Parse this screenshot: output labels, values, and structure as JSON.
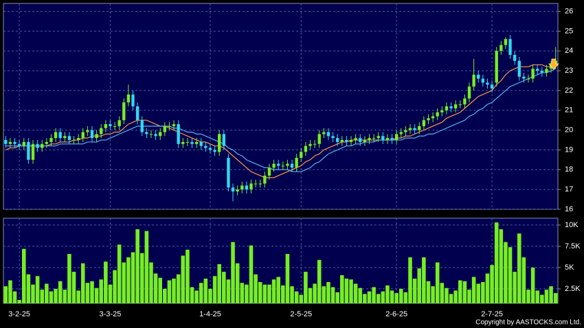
{
  "chart_data": [
    {
      "type": "candlestick",
      "categories": [
        null,
        null,
        null,
        "3-2-25",
        null,
        null,
        null,
        null,
        null,
        null,
        null,
        null,
        null,
        null,
        null,
        null,
        null,
        null,
        null,
        null,
        null,
        null,
        null,
        "3-3-25",
        null,
        null,
        null,
        null,
        null,
        null,
        null,
        null,
        null,
        null,
        null,
        null,
        null,
        null,
        null,
        null,
        null,
        null,
        null,
        null,
        null,
        "1-4-25",
        null,
        null,
        null,
        null,
        null,
        null,
        null,
        null,
        null,
        null,
        null,
        null,
        null,
        null,
        null,
        null,
        null,
        null,
        null,
        "2-5-25",
        null,
        null,
        null,
        null,
        null,
        null,
        null,
        null,
        null,
        null,
        null,
        null,
        null,
        null,
        null,
        null,
        null,
        null,
        null,
        null,
        "2-6-25",
        null,
        null,
        null,
        null,
        null,
        null,
        null,
        null,
        null,
        null,
        null,
        null,
        null,
        null,
        null,
        null,
        null,
        null,
        null,
        null,
        "2-7-25",
        null,
        null,
        null,
        null,
        null,
        null,
        null,
        null,
        null,
        null,
        null,
        null,
        null,
        null
      ],
      "open": [
        19.5,
        19.3,
        19.4,
        19.3,
        19.2,
        19.4,
        18.5,
        19.3,
        19.1,
        19.3,
        19.4,
        19.6,
        19.9,
        19.6,
        19.7,
        19.5,
        19.5,
        19.6,
        19.9,
        20.0,
        19.6,
        19.8,
        20.1,
        20.3,
        20.2,
        20.2,
        20.5,
        21.4,
        21.8,
        21.2,
        20.5,
        19.9,
        19.8,
        19.8,
        19.7,
        19.9,
        20.2,
        20.2,
        20.3,
        19.3,
        19.4,
        19.4,
        19.3,
        19.4,
        19.2,
        19.1,
        19.0,
        18.9,
        19.8,
        18.6,
        17.1,
        16.9,
        17.0,
        17.2,
        17.0,
        17.3,
        17.3,
        17.3,
        17.7,
        18.1,
        18.3,
        18.2,
        18.2,
        18.3,
        18.1,
        18.6,
        18.9,
        19.2,
        19.3,
        19.3,
        19.8,
        19.9,
        19.7,
        19.6,
        19.4,
        19.5,
        19.4,
        19.5,
        19.6,
        19.4,
        19.5,
        19.6,
        19.6,
        19.7,
        19.5,
        19.6,
        19.5,
        19.8,
        19.9,
        20.0,
        20.1,
        20.0,
        20.2,
        20.5,
        20.6,
        20.7,
        20.9,
        21.0,
        21.2,
        21.1,
        21.3,
        21.3,
        21.6,
        22.2,
        22.8,
        22.6,
        22.4,
        22.3,
        22.4,
        24.0,
        24.3,
        24.6,
        23.8,
        23.5,
        22.7,
        22.6,
        22.6,
        23.1,
        23.0,
        22.9,
        23.1,
        23.3
      ],
      "high": [
        19.7,
        19.6,
        19.6,
        19.5,
        19.6,
        19.6,
        19.5,
        19.5,
        19.5,
        19.6,
        19.8,
        20.1,
        20.1,
        19.9,
        19.9,
        19.7,
        19.8,
        20.1,
        20.2,
        20.2,
        20.0,
        20.3,
        20.5,
        20.5,
        20.4,
        20.7,
        21.6,
        22.3,
        22.0,
        21.4,
        20.7,
        20.1,
        20.0,
        20.0,
        20.1,
        20.4,
        20.4,
        20.5,
        20.5,
        19.6,
        19.6,
        19.6,
        19.6,
        19.6,
        19.4,
        19.3,
        19.2,
        20.0,
        20.0,
        18.8,
        17.3,
        17.2,
        17.4,
        17.4,
        17.5,
        17.5,
        17.5,
        17.9,
        18.3,
        18.5,
        18.5,
        18.4,
        18.5,
        18.5,
        18.8,
        19.1,
        19.4,
        19.5,
        19.5,
        20.0,
        20.1,
        20.1,
        19.9,
        19.8,
        19.7,
        19.7,
        19.7,
        19.8,
        19.8,
        19.7,
        19.8,
        19.8,
        19.9,
        19.9,
        19.8,
        19.8,
        20.0,
        20.1,
        20.2,
        20.3,
        20.3,
        20.4,
        20.7,
        20.8,
        20.9,
        21.1,
        21.2,
        21.4,
        21.4,
        21.5,
        21.5,
        21.8,
        22.4,
        23.6,
        23.0,
        22.8,
        22.6,
        22.5,
        24.2,
        24.5,
        24.7,
        24.8,
        24.0,
        23.7,
        22.9,
        22.8,
        23.3,
        23.3,
        23.2,
        23.3,
        23.5,
        24.2
      ],
      "low": [
        19.1,
        19.1,
        19.1,
        19.0,
        19.0,
        18.3,
        18.3,
        18.9,
        18.9,
        19.1,
        19.2,
        19.4,
        19.4,
        19.4,
        19.3,
        19.3,
        19.3,
        19.4,
        19.7,
        19.4,
        19.4,
        19.6,
        19.9,
        20.0,
        20.0,
        20.0,
        20.3,
        21.2,
        21.0,
        20.3,
        19.7,
        19.6,
        19.6,
        19.5,
        19.5,
        19.7,
        20.0,
        20.0,
        19.1,
        19.1,
        19.2,
        19.1,
        19.1,
        19.0,
        18.9,
        18.8,
        18.7,
        18.7,
        19.0,
        16.9,
        16.4,
        16.7,
        16.8,
        16.8,
        16.8,
        17.1,
        17.1,
        17.1,
        17.5,
        17.9,
        18.0,
        18.0,
        18.0,
        17.9,
        17.9,
        18.4,
        18.7,
        19.0,
        19.1,
        19.1,
        19.6,
        19.5,
        19.4,
        19.2,
        19.2,
        19.2,
        19.2,
        19.3,
        19.2,
        19.2,
        19.3,
        19.4,
        19.4,
        19.3,
        19.3,
        19.3,
        19.3,
        19.6,
        19.7,
        19.8,
        19.8,
        19.8,
        20.0,
        20.3,
        20.4,
        20.5,
        20.7,
        20.8,
        20.9,
        20.9,
        21.1,
        21.1,
        21.4,
        22.0,
        22.4,
        22.2,
        22.1,
        21.9,
        22.2,
        23.8,
        24.1,
        23.6,
        23.3,
        22.5,
        22.4,
        22.4,
        22.4,
        22.8,
        22.7,
        22.7,
        22.9,
        23.1
      ],
      "close": [
        19.3,
        19.4,
        19.3,
        19.2,
        19.4,
        18.5,
        19.3,
        19.1,
        19.3,
        19.4,
        19.6,
        19.9,
        19.6,
        19.7,
        19.5,
        19.5,
        19.6,
        19.9,
        20.0,
        19.6,
        19.8,
        20.1,
        20.3,
        20.2,
        20.2,
        20.5,
        21.4,
        21.8,
        21.2,
        20.5,
        19.9,
        19.8,
        19.8,
        19.7,
        19.9,
        20.2,
        20.2,
        20.3,
        19.3,
        19.4,
        19.4,
        19.3,
        19.4,
        19.2,
        19.1,
        19.0,
        18.9,
        19.8,
        19.2,
        17.1,
        16.9,
        17.0,
        17.2,
        17.0,
        17.3,
        17.3,
        17.3,
        17.7,
        18.1,
        18.3,
        18.2,
        18.2,
        18.3,
        18.1,
        18.6,
        18.9,
        19.2,
        19.3,
        19.3,
        19.8,
        19.9,
        19.7,
        19.6,
        19.4,
        19.5,
        19.4,
        19.5,
        19.6,
        19.4,
        19.5,
        19.6,
        19.6,
        19.7,
        19.5,
        19.6,
        19.5,
        19.8,
        19.9,
        20.0,
        20.1,
        20.0,
        20.2,
        20.5,
        20.6,
        20.7,
        20.9,
        21.0,
        21.2,
        21.1,
        21.3,
        21.3,
        21.6,
        22.2,
        22.8,
        22.6,
        22.4,
        22.3,
        22.1,
        24.0,
        24.3,
        24.6,
        23.8,
        23.5,
        22.7,
        22.6,
        22.6,
        23.1,
        23.0,
        22.9,
        23.1,
        23.3,
        23.5
      ],
      "up_color": "#77ee22",
      "down_color": "#33d6f0",
      "series": [
        {
          "color": "#ff9944",
          "values": [
            19.0,
            19.1,
            19.1,
            19.2,
            19.2,
            19.2,
            19.2,
            19.2,
            19.2,
            19.2,
            19.3,
            19.3,
            19.4,
            19.4,
            19.4,
            19.5,
            19.5,
            19.6,
            19.6,
            19.7,
            19.7,
            19.7,
            19.8,
            19.8,
            19.9,
            19.9,
            20.1,
            20.3,
            20.4,
            20.5,
            20.5,
            20.5,
            20.4,
            20.3,
            20.2,
            20.2,
            20.1,
            20.0,
            19.9,
            19.8,
            19.7,
            19.6,
            19.5,
            19.4,
            19.4,
            19.3,
            19.2,
            19.2,
            19.1,
            18.9,
            18.7,
            18.5,
            18.3,
            18.1,
            17.9,
            17.8,
            17.7,
            17.6,
            17.6,
            17.6,
            17.7,
            17.8,
            17.9,
            18.0,
            18.1,
            18.2,
            18.4,
            18.5,
            18.7,
            18.8,
            19.0,
            19.1,
            19.2,
            19.3,
            19.4,
            19.4,
            19.5,
            19.5,
            19.5,
            19.5,
            19.5,
            19.5,
            19.5,
            19.5,
            19.5,
            19.5,
            19.6,
            19.6,
            19.7,
            19.7,
            19.8,
            19.9,
            20.0,
            20.1,
            20.2,
            20.3,
            20.4,
            20.6,
            20.7,
            20.8,
            20.9,
            21.1,
            21.3,
            21.5,
            21.7,
            21.8,
            21.9,
            22.0,
            22.3,
            22.5,
            22.8,
            23.0,
            23.1,
            23.2,
            23.2,
            23.2,
            23.3,
            23.3,
            23.3,
            23.2,
            23.2,
            23.1
          ]
        },
        {
          "color": "#5ab4f0",
          "values": [
            19.2,
            19.2,
            19.2,
            19.2,
            19.2,
            19.2,
            19.2,
            19.2,
            19.2,
            19.2,
            19.2,
            19.2,
            19.3,
            19.3,
            19.3,
            19.3,
            19.3,
            19.3,
            19.4,
            19.4,
            19.4,
            19.5,
            19.5,
            19.6,
            19.7,
            19.8,
            19.9,
            20.0,
            20.1,
            20.2,
            20.2,
            20.2,
            20.2,
            20.2,
            20.2,
            20.2,
            20.2,
            20.1,
            20.1,
            20.0,
            19.9,
            19.9,
            19.8,
            19.8,
            19.7,
            19.6,
            19.5,
            19.4,
            19.3,
            19.1,
            19.0,
            18.8,
            18.7,
            18.5,
            18.4,
            18.3,
            18.2,
            18.1,
            18.1,
            18.0,
            18.0,
            18.0,
            18.0,
            17.9,
            17.9,
            17.9,
            18.0,
            18.1,
            18.3,
            18.4,
            18.6,
            18.8,
            18.9,
            19.0,
            19.1,
            19.2,
            19.2,
            19.3,
            19.3,
            19.4,
            19.4,
            19.4,
            19.5,
            19.5,
            19.5,
            19.5,
            19.5,
            19.5,
            19.6,
            19.6,
            19.6,
            19.7,
            19.7,
            19.8,
            19.8,
            19.9,
            20.0,
            20.1,
            20.2,
            20.3,
            20.4,
            20.5,
            20.7,
            20.8,
            21.0,
            21.1,
            21.3,
            21.4,
            21.6,
            21.8,
            22.0,
            22.2,
            22.3,
            22.4,
            22.5,
            22.6,
            22.7,
            22.8,
            22.9,
            22.9,
            23.0,
            23.1
          ]
        }
      ],
      "ylim": [
        16,
        26.4
      ],
      "yticks": [
        16,
        17,
        18,
        19,
        20,
        21,
        22,
        23,
        24,
        25,
        26
      ],
      "grid": true
    },
    {
      "type": "bar",
      "color": "#77ee22",
      "values": [
        2800,
        3500,
        2200,
        1200,
        7200,
        4200,
        3000,
        4000,
        2400,
        3100,
        2200,
        2500,
        3400,
        2400,
        6600,
        4500,
        2300,
        5500,
        3200,
        3400,
        2600,
        3600,
        5700,
        3000,
        4700,
        7700,
        5600,
        6200,
        6800,
        9500,
        6700,
        9300,
        5600,
        4300,
        3800,
        2500,
        3500,
        3700,
        4200,
        6400,
        7100,
        2700,
        2300,
        3200,
        3700,
        2500,
        4000,
        5400,
        4500,
        3600,
        8000,
        5500,
        3200,
        3000,
        7600,
        4200,
        3300,
        3000,
        3000,
        3600,
        3900,
        2900,
        6600,
        2800,
        2200,
        1800,
        4500,
        2600,
        3100,
        5900,
        2800,
        3300,
        2700,
        2100,
        4100,
        3700,
        3600,
        3100,
        2600,
        1900,
        2200,
        2700,
        1900,
        2200,
        2900,
        2300,
        2000,
        2500,
        2100,
        6200,
        3700,
        4900,
        6200,
        3400,
        2800,
        5600,
        3200,
        2600,
        1900,
        2300,
        3500,
        3400,
        2400,
        3900,
        3100,
        3300,
        4300,
        5300,
        10300,
        9500,
        8000,
        7400,
        4500,
        9000,
        6200,
        2400,
        5000,
        2300,
        1800,
        2400,
        2800,
        2000
      ],
      "ylim": [
        800,
        10800
      ],
      "yticks": [
        {
          "value": 2500,
          "label": "2.5K"
        },
        {
          "value": 5000,
          "label": "5K"
        },
        {
          "value": 7500,
          "label": "7.5K"
        },
        {
          "value": 10000,
          "label": "10K"
        }
      ],
      "grid": true
    }
  ],
  "footer": "Copyright by AASTOCKS.com Ltd."
}
